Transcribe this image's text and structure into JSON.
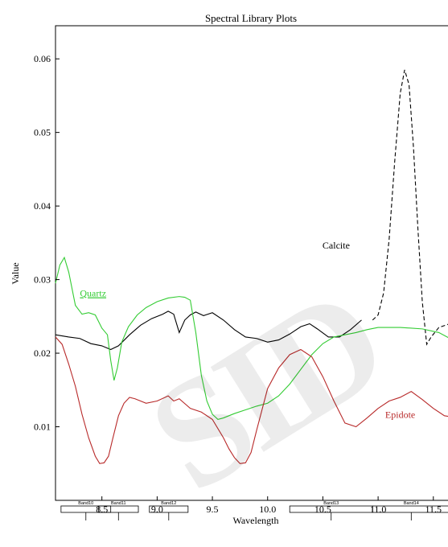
{
  "chart_data": {
    "type": "line",
    "title": "Spectral Library Plots",
    "xlabel": "Wavelength",
    "ylabel": "Value",
    "xlim": [
      8.08,
      11.72
    ],
    "ylim": [
      0.0,
      0.0645
    ],
    "x_ticks": [
      8.5,
      9.0,
      9.5,
      10.0,
      10.5,
      11.0,
      11.5
    ],
    "x_tick_labels": [
      "8.5",
      "9.0",
      "9.5",
      "10.0",
      "10.5",
      "11.0",
      "11.5"
    ],
    "y_ticks": [
      0.01,
      0.02,
      0.03,
      0.04,
      0.05,
      0.06
    ],
    "y_tick_labels": [
      "0.01",
      "0.02",
      "0.03",
      "0.04",
      "0.05",
      "0.06"
    ],
    "grid": false,
    "series": [
      {
        "name": "Calcite",
        "color": "#000000",
        "style": "solid-then-dashed",
        "dash_from_x": 10.92,
        "x": [
          8.08,
          8.2,
          8.3,
          8.4,
          8.5,
          8.58,
          8.65,
          8.75,
          8.85,
          8.95,
          9.05,
          9.1,
          9.15,
          9.2,
          9.25,
          9.3,
          9.35,
          9.42,
          9.5,
          9.6,
          9.7,
          9.8,
          9.9,
          10.0,
          10.1,
          10.2,
          10.3,
          10.38,
          10.45,
          10.55,
          10.65,
          10.75,
          10.85,
          10.95,
          11.0,
          11.05,
          11.1,
          11.15,
          11.2,
          11.24,
          11.28,
          11.32,
          11.36,
          11.4,
          11.44,
          11.48,
          11.55,
          11.65,
          11.72
        ],
        "y": [
          0.0225,
          0.0222,
          0.022,
          0.0213,
          0.021,
          0.0205,
          0.021,
          0.0225,
          0.0238,
          0.0247,
          0.0253,
          0.0257,
          0.0253,
          0.0228,
          0.0245,
          0.0252,
          0.0256,
          0.0251,
          0.0255,
          0.0245,
          0.0232,
          0.0222,
          0.022,
          0.0215,
          0.0218,
          0.0226,
          0.0236,
          0.024,
          0.0233,
          0.0222,
          0.0222,
          0.0232,
          0.0245,
          0.0245,
          0.0252,
          0.0282,
          0.0355,
          0.046,
          0.0553,
          0.0585,
          0.0565,
          0.048,
          0.037,
          0.027,
          0.0212,
          0.0222,
          0.0235,
          0.024,
          0.0238
        ]
      },
      {
        "name": "Quartz",
        "color": "#33cc33",
        "style": "solid",
        "x": [
          8.08,
          8.12,
          8.16,
          8.2,
          8.26,
          8.32,
          8.38,
          8.44,
          8.5,
          8.55,
          8.58,
          8.61,
          8.64,
          8.68,
          8.74,
          8.82,
          8.9,
          9.0,
          9.1,
          9.2,
          9.25,
          9.3,
          9.35,
          9.4,
          9.45,
          9.5,
          9.55,
          9.6,
          9.7,
          9.8,
          9.9,
          10.0,
          10.1,
          10.2,
          10.3,
          10.4,
          10.5,
          10.6,
          10.7,
          10.8,
          10.9,
          11.0,
          11.2,
          11.4,
          11.55,
          11.65,
          11.72
        ],
        "y": [
          0.0295,
          0.032,
          0.033,
          0.031,
          0.0265,
          0.0253,
          0.0255,
          0.0252,
          0.0234,
          0.0225,
          0.019,
          0.0163,
          0.018,
          0.0215,
          0.0236,
          0.0252,
          0.0262,
          0.027,
          0.0275,
          0.0277,
          0.0276,
          0.0272,
          0.0228,
          0.017,
          0.0135,
          0.0117,
          0.011,
          0.0112,
          0.0118,
          0.0123,
          0.0128,
          0.0132,
          0.0142,
          0.0158,
          0.0178,
          0.0198,
          0.0213,
          0.0222,
          0.0225,
          0.0228,
          0.0232,
          0.0235,
          0.0235,
          0.0233,
          0.0228,
          0.022,
          0.0215
        ]
      },
      {
        "name": "Epidote",
        "color": "#b82a2a",
        "style": "solid",
        "x": [
          8.08,
          8.14,
          8.2,
          8.26,
          8.32,
          8.38,
          8.44,
          8.48,
          8.52,
          8.56,
          8.6,
          8.65,
          8.7,
          8.75,
          8.8,
          8.9,
          9.0,
          9.1,
          9.15,
          9.2,
          9.3,
          9.4,
          9.5,
          9.6,
          9.65,
          9.7,
          9.75,
          9.8,
          9.85,
          9.9,
          10.0,
          10.1,
          10.2,
          10.3,
          10.4,
          10.5,
          10.6,
          10.7,
          10.8,
          10.9,
          11.0,
          11.1,
          11.2,
          11.3,
          11.4,
          11.5,
          11.6,
          11.72
        ],
        "y": [
          0.0222,
          0.0212,
          0.0185,
          0.0155,
          0.0117,
          0.0085,
          0.006,
          0.005,
          0.0051,
          0.006,
          0.0085,
          0.0115,
          0.0132,
          0.014,
          0.0138,
          0.0132,
          0.0135,
          0.0142,
          0.0135,
          0.0138,
          0.0125,
          0.012,
          0.011,
          0.0085,
          0.007,
          0.0058,
          0.005,
          0.0051,
          0.0065,
          0.0095,
          0.0152,
          0.018,
          0.0198,
          0.0205,
          0.0195,
          0.0168,
          0.0135,
          0.0105,
          0.01,
          0.0112,
          0.0125,
          0.0135,
          0.014,
          0.0148,
          0.0137,
          0.0125,
          0.0115,
          0.0112
        ]
      }
    ],
    "annotations": [
      {
        "text": "Calcite",
        "x": 10.62,
        "y": 0.0342,
        "color": "#000000",
        "underline": false
      },
      {
        "text": "Quartz",
        "x": 8.42,
        "y": 0.0277,
        "color": "#33cc33",
        "underline": true
      },
      {
        "text": "Epidote",
        "x": 11.2,
        "y": 0.0112,
        "color": "#b82a2a",
        "underline": false
      }
    ],
    "bands": [
      {
        "label": "Band10",
        "start": 8.13,
        "end": 8.58
      },
      {
        "label": "Band11",
        "start": 8.47,
        "end": 8.83
      },
      {
        "label": "Band12",
        "start": 8.93,
        "end": 9.28
      },
      {
        "label": "Band13",
        "start": 10.2,
        "end": 10.95
      },
      {
        "label": "Band14",
        "start": 10.95,
        "end": 11.65
      }
    ]
  }
}
